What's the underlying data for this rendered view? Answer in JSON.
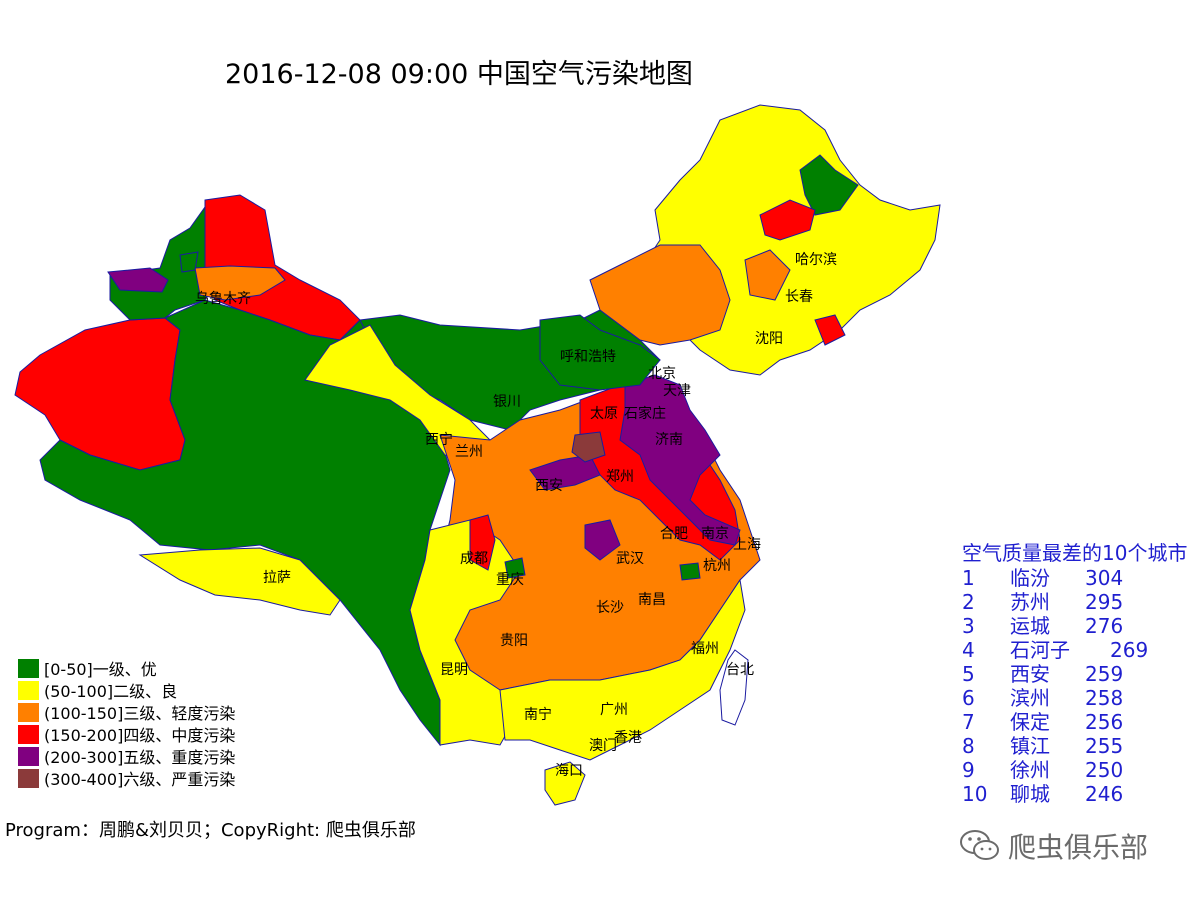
{
  "title": "2016-12-08 09:00 中国空气污染地图",
  "cities": {
    "wulumuqi": "乌鲁木齐",
    "haerbin": "哈尔滨",
    "changchun": "长春",
    "shenyang": "沈阳",
    "huhehaote": "呼和浩特",
    "beijing": "北京",
    "tianjin": "天津",
    "yinchuan": "银川",
    "taiyuan": "太原",
    "shijiazhuang": "石家庄",
    "xining": "西宁",
    "lanzhou": "兰州",
    "jinan": "济南",
    "xian": "西安",
    "zhengzhou": "郑州",
    "hefei": "合肥",
    "nanjing": "南京",
    "shanghai": "上海",
    "chengdu": "成都",
    "wuhan": "武汉",
    "hangzhou": "杭州",
    "chongqing": "重庆",
    "lasa": "拉萨",
    "changsha": "长沙",
    "nanchang": "南昌",
    "guiyang": "贵阳",
    "fuzhou": "福州",
    "kunming": "昆明",
    "taibei": "台北",
    "nanning": "南宁",
    "guangzhou": "广州",
    "aomen": "澳门",
    "xianggang": "香港",
    "haikou": "海口"
  },
  "legend": [
    {
      "label": "[0-50]一级、优",
      "color": "#008000"
    },
    {
      "label": "(50-100]二级、良",
      "color": "#ffff00"
    },
    {
      "label": "(100-150]三级、轻度污染",
      "color": "#ff8000"
    },
    {
      "label": "(150-200]四级、中度污染",
      "color": "#ff0000"
    },
    {
      "label": "(200-300]五级、重度污染",
      "color": "#800080"
    },
    {
      "label": "(300-400]六级、严重污染",
      "color": "#8b3a3a"
    }
  ],
  "ranking": {
    "title": "空气质量最差的10个城市",
    "rows": [
      {
        "rank": "1",
        "city": "临汾",
        "value": "304"
      },
      {
        "rank": "2",
        "city": "苏州",
        "value": "295"
      },
      {
        "rank": "3",
        "city": "运城",
        "value": "276"
      },
      {
        "rank": "4",
        "city": "石河子",
        "value": "269"
      },
      {
        "rank": "5",
        "city": "西安",
        "value": "259"
      },
      {
        "rank": "6",
        "city": "滨州",
        "value": "258"
      },
      {
        "rank": "7",
        "city": "保定",
        "value": "256"
      },
      {
        "rank": "8",
        "city": "镇江",
        "value": "255"
      },
      {
        "rank": "9",
        "city": "徐州",
        "value": "250"
      },
      {
        "rank": "10",
        "city": "聊城",
        "value": "246"
      }
    ]
  },
  "program_text": "Program：周鹏&刘贝贝；CopyRight: 爬虫俱乐部",
  "watermark_text": "爬虫俱乐部",
  "watermark_icon": "wechat-icon",
  "colors": {
    "good": "#008000",
    "moderate": "#ffff00",
    "light": "#ff8000",
    "medium": "#ff0000",
    "heavy": "#800080",
    "severe": "#8b3a3a",
    "border": "#1a1aa0",
    "ranking_text": "#1f1fcf"
  }
}
